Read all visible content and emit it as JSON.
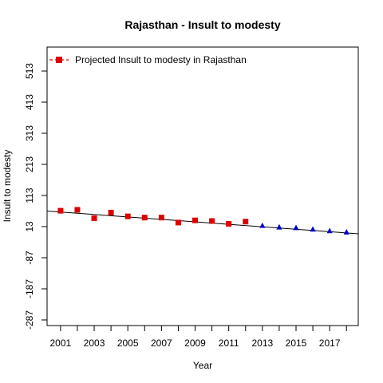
{
  "chart_data": {
    "type": "scatter",
    "title": "Rajasthan  -  Insult to modesty",
    "xlabel": "Year",
    "ylabel": "Insult to modesty",
    "xlim": [
      2000.2,
      2018.7
    ],
    "ylim": [
      -305,
      590
    ],
    "x_ticks": [
      2001,
      2003,
      2005,
      2007,
      2009,
      2011,
      2013,
      2015,
      2017
    ],
    "x_ticks_minor": [
      2002,
      2004,
      2006,
      2008,
      2010,
      2012,
      2014,
      2016,
      2018
    ],
    "y_ticks": [
      -287,
      -187,
      -87,
      13,
      113,
      213,
      313,
      413,
      513
    ],
    "legend": {
      "label": "Projected  Insult to modesty  in  Rajasthan",
      "position": "top-left",
      "color": "#dd0000"
    },
    "series": [
      {
        "marker": "square",
        "color": "#dd0000",
        "x": [
          2001,
          2002,
          2003,
          2004,
          2005,
          2006,
          2007,
          2008,
          2009,
          2010,
          2011,
          2012
        ],
        "y": [
          64,
          67,
          40,
          58,
          46,
          42,
          42,
          26,
          33,
          31,
          22,
          29
        ]
      },
      {
        "marker": "triangle",
        "color": "#0000cc",
        "x": [
          2013,
          2014,
          2015,
          2016,
          2017,
          2018
        ],
        "y": [
          16,
          11,
          9,
          4,
          -1,
          -5
        ]
      }
    ],
    "trend_line": {
      "x": [
        2000.2,
        2018.7
      ],
      "y": [
        63,
        -10
      ],
      "color": "#000000"
    },
    "grid": false
  }
}
